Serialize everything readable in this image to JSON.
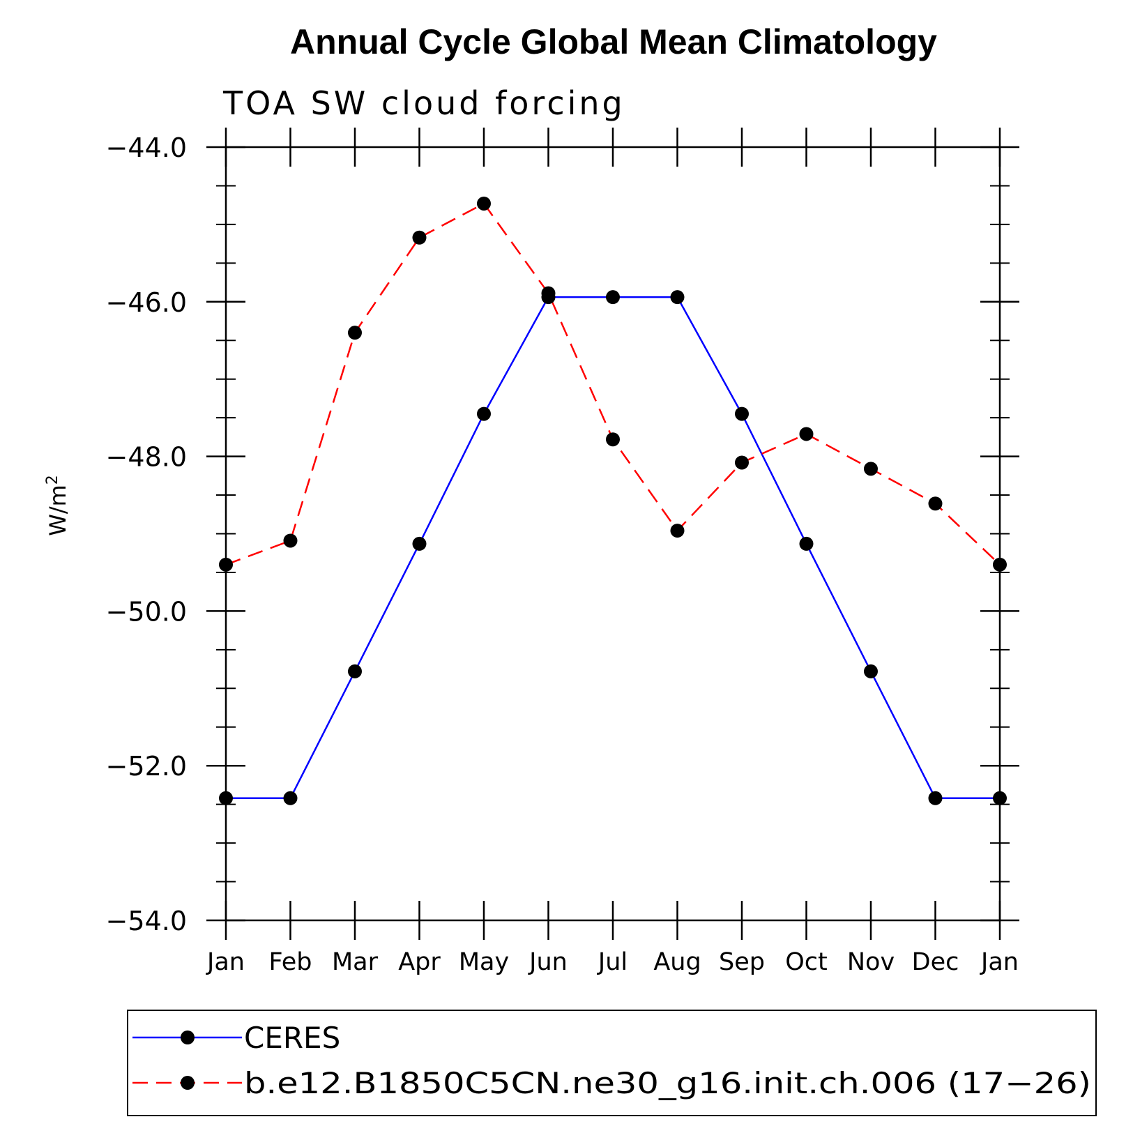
{
  "chart_data": {
    "type": "line",
    "title": "Annual Cycle Global Mean Climatology",
    "subtitle": "TOA SW cloud forcing",
    "ylabel": "W/m",
    "ylabel_superscript": "2",
    "xlabel": "",
    "categories": [
      "Jan",
      "Feb",
      "Mar",
      "Apr",
      "May",
      "Jun",
      "Jul",
      "Aug",
      "Sep",
      "Oct",
      "Nov",
      "Dec",
      "Jan"
    ],
    "ylim": [
      -54.0,
      -44.0
    ],
    "yticks": [
      -44.0,
      -46.0,
      -48.0,
      -50.0,
      -52.0,
      -54.0
    ],
    "ytick_labels": [
      "−44.0",
      "−46.0",
      "−48.0",
      "−50.0",
      "−52.0",
      "−54.0"
    ],
    "grid": false,
    "legend_position": "bottom",
    "series": [
      {
        "name": "CERES",
        "color": "#0000ff",
        "dash": "solid",
        "marker": "circle",
        "values": [
          -52.42,
          -52.42,
          -50.78,
          -49.13,
          -47.45,
          -45.94,
          -45.94,
          -45.94,
          -47.45,
          -49.13,
          -50.78,
          -52.42,
          -52.42
        ]
      },
      {
        "name": "b.e12.B1850C5CN.ne30_g16.init.ch.006 (17−26)",
        "color": "#ff0000",
        "dash": "dashed",
        "marker": "circle",
        "values": [
          -49.4,
          -49.09,
          -46.4,
          -45.17,
          -44.73,
          -45.89,
          -47.78,
          -48.96,
          -48.08,
          -47.71,
          -48.16,
          -48.61,
          -49.4
        ]
      }
    ]
  }
}
